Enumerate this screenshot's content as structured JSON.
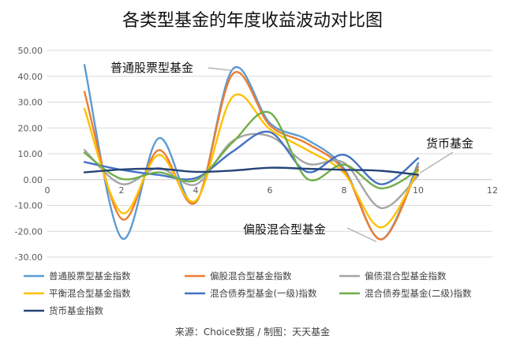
{
  "chart_data": {
    "type": "line",
    "title": "各类型基金的年度收益波动对比图",
    "source": "来源：Choice数据 / 制图：天天基金",
    "xlabel": "",
    "ylabel": "",
    "xlim": [
      0,
      12
    ],
    "ylim": [
      -30,
      50
    ],
    "x_ticks": [
      0,
      2,
      4,
      6,
      8,
      10,
      12
    ],
    "y_ticks": [
      -30,
      -20,
      -10,
      0,
      10,
      20,
      30,
      40,
      50
    ],
    "y_tick_labels": [
      "-30.00",
      "-20.00",
      "-10.00",
      "0.00",
      "10.00",
      "20.00",
      "30.00",
      "40.00",
      "50.00"
    ],
    "grid": true,
    "smooth": true,
    "legend_position": "bottom",
    "x": [
      1,
      2,
      3,
      4,
      5,
      6,
      7,
      8,
      9,
      10
    ],
    "series": [
      {
        "name": "普通股票型基金指数",
        "color": "#5B9BD5",
        "values": [
          44.4,
          -22.6,
          16.0,
          -8.9,
          42.8,
          21.9,
          15.5,
          4.3,
          -23.1,
          6.4
        ]
      },
      {
        "name": "偏股混合型基金指数",
        "color": "#ED7D31",
        "values": [
          34.0,
          -15.2,
          11.4,
          -8.8,
          40.9,
          21.0,
          14.0,
          3.5,
          -23.2,
          5.0
        ]
      },
      {
        "name": "偏债混合型基金指数",
        "color": "#A5A5A5",
        "values": [
          11.5,
          -1.7,
          4.5,
          -1.9,
          15.0,
          16.8,
          6.2,
          6.5,
          -11.0,
          1.5
        ]
      },
      {
        "name": "平衡混合型基金指数",
        "color": "#FFC000",
        "values": [
          27.5,
          -12.8,
          9.5,
          -8.2,
          32.1,
          19.5,
          11.5,
          2.5,
          -18.5,
          3.5
        ]
      },
      {
        "name": "混合债券型基金(一级)指数",
        "color": "#4472C4",
        "values": [
          6.8,
          3.8,
          1.8,
          0.6,
          10.9,
          18.4,
          3.0,
          9.6,
          -1.8,
          8.3
        ]
      },
      {
        "name": "混合债券型基金(二级)指数",
        "color": "#70AD47",
        "values": [
          10.4,
          0.3,
          2.8,
          -0.3,
          14.5,
          25.9,
          0.4,
          5.8,
          -3.4,
          3.7
        ]
      },
      {
        "name": "货币基金指数",
        "color": "#264478",
        "values": [
          2.8,
          3.9,
          4.2,
          3.0,
          3.5,
          4.6,
          4.2,
          3.8,
          3.4,
          1.9
        ]
      }
    ],
    "annotations": [
      {
        "text": "普通股票型基金"
      },
      {
        "text": "货币基金"
      },
      {
        "text": "偏股混合型基金"
      }
    ]
  }
}
